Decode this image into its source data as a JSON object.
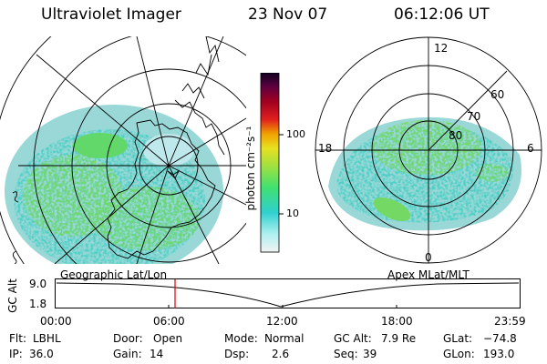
{
  "header": {
    "instrument": "Ultraviolet Imager",
    "date": "23 Nov 07",
    "time": "06:12:06 UT"
  },
  "left_panel": {
    "caption": "Geographic Lat/Lon",
    "side_marks": [
      "ʃ",
      "ɔ"
    ]
  },
  "right_panel": {
    "caption": "Apex MLat/MLT",
    "mlt_labels": {
      "top": "12",
      "bottom": "0",
      "left": "18",
      "right": "6"
    },
    "lat_labels": [
      "60",
      "70",
      "80"
    ]
  },
  "colorbar": {
    "unit_label": "photon cm⁻²s⁻¹",
    "ticks": [
      "100",
      "10"
    ],
    "scale": "log",
    "colors": [
      "#f2f2f2",
      "#b0f0f0",
      "#30d0d0",
      "#40e070",
      "#a0e040",
      "#e8e020",
      "#f0a000",
      "#e02020",
      "#a00020",
      "#600040",
      "#100020"
    ]
  },
  "altitude_plot": {
    "ylabel": "GC Alt",
    "yticks": [
      "9.0",
      "1.8"
    ],
    "xticks": [
      "00:00",
      "06:00",
      "12:00",
      "18:00",
      "23:59"
    ],
    "current_time_marker": "06:12"
  },
  "info": {
    "flt_label": "Flt:",
    "flt_value": "LBHL",
    "ip_label": "IP:",
    "ip_value": "36.0",
    "door_label": "Door:",
    "door_value": "Open",
    "gain_label": "Gain:",
    "gain_value": "14",
    "mode_label": "Mode:",
    "mode_value": "Normal",
    "dsp_label": "Dsp:",
    "dsp_value": "2.6",
    "gcalt_label": "GC Alt:",
    "gcalt_value": "7.9 Re",
    "seq_label": "Seq:",
    "seq_value": "39",
    "glat_label": "GLat:",
    "glat_value": "−74.8",
    "glon_label": "GLon:",
    "glon_value": "193.0"
  }
}
